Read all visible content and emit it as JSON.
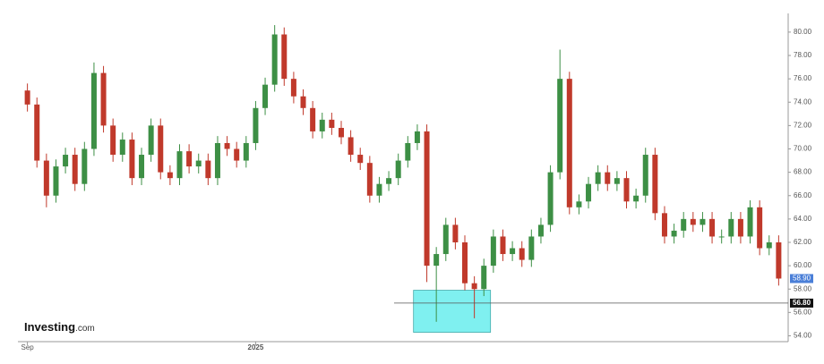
{
  "chart_data": {
    "type": "candlestick",
    "up_color": "#3d8f45",
    "down_color": "#c0392b",
    "open": [
      75,
      73.8,
      69,
      66,
      68.5,
      69.5,
      67,
      70,
      76.5,
      72,
      69.5,
      70.8,
      67.5,
      69.5,
      72,
      68,
      67.5,
      69.8,
      68.5,
      69,
      67.5,
      70.5,
      70,
      69,
      70.5,
      73.5,
      75.5,
      79.8,
      76,
      74.5,
      73.5,
      71.5,
      72.5,
      71.8,
      71,
      69.5,
      68.8,
      66,
      67,
      67.5,
      69,
      70.5,
      71.5,
      60,
      61,
      63.5,
      62,
      58.5,
      58,
      60,
      62.5,
      61,
      61.5,
      60.5,
      62.5,
      63.5,
      68,
      76,
      65,
      65.5,
      67,
      68,
      67,
      67.5,
      65.5,
      66,
      69.5,
      64.5,
      62.5,
      63,
      64,
      63.5,
      64,
      62.5,
      62.5,
      64,
      62.5,
      65,
      61.5,
      62
    ],
    "high": [
      75.6,
      74.4,
      69.6,
      69.1,
      70.1,
      70.1,
      70.6,
      77.4,
      77.1,
      72.6,
      71.4,
      71.4,
      70.1,
      72.6,
      72.6,
      68.6,
      70.4,
      70.4,
      69.6,
      69.6,
      71.1,
      71.1,
      70.6,
      71.1,
      74.1,
      76.1,
      80.6,
      80.4,
      76.6,
      75.1,
      74.1,
      73.1,
      73.1,
      72.4,
      71.6,
      70.1,
      69.4,
      67.6,
      68.1,
      69.6,
      71.1,
      72.1,
      72.1,
      61.6,
      64.1,
      64.1,
      62.6,
      59.1,
      60.6,
      63.1,
      63.1,
      62.1,
      62.1,
      63.1,
      64.1,
      68.6,
      78.5,
      76.6,
      66.1,
      67.6,
      68.6,
      68.6,
      68.1,
      68.1,
      66.6,
      70.1,
      70.1,
      65.1,
      63.6,
      64.6,
      64.6,
      64.6,
      64.6,
      63.1,
      64.6,
      64.6,
      65.6,
      65.6,
      62.6,
      62.6
    ],
    "low": [
      73.2,
      68.4,
      65.0,
      65.4,
      67.9,
      66.4,
      66.4,
      69.4,
      71.4,
      68.9,
      68.9,
      66.9,
      66.9,
      68.9,
      67.4,
      66.9,
      66.9,
      67.9,
      67.9,
      66.9,
      66.9,
      69.4,
      68.4,
      68.4,
      69.9,
      72.9,
      74.9,
      75.4,
      73.9,
      72.9,
      70.9,
      70.9,
      71.2,
      70.4,
      68.9,
      68.2,
      65.4,
      65.4,
      66.4,
      66.9,
      68.4,
      69.9,
      58.6,
      55.2,
      60.4,
      61.4,
      57.9,
      55.5,
      57.4,
      59.4,
      60.4,
      60.4,
      59.9,
      59.9,
      61.9,
      62.9,
      67.4,
      64.4,
      64.4,
      64.9,
      66.4,
      66.4,
      66.4,
      64.9,
      64.9,
      65.4,
      63.9,
      61.9,
      61.9,
      62.4,
      62.9,
      62.9,
      61.9,
      61.9,
      61.9,
      61.9,
      61.9,
      60.9,
      60.9,
      58.3
    ],
    "close": [
      73.8,
      69,
      66,
      68.5,
      69.5,
      67,
      70,
      76.5,
      72,
      69.5,
      70.8,
      67.5,
      69.5,
      72,
      68,
      67.5,
      69.8,
      68.5,
      69,
      67.5,
      70.5,
      70,
      69,
      70.5,
      73.5,
      75.5,
      79.8,
      76,
      74.5,
      73.5,
      71.5,
      72.5,
      71.8,
      71,
      69.5,
      68.8,
      66,
      67,
      67.5,
      69,
      70.5,
      71.5,
      60,
      61,
      63.5,
      62,
      58.5,
      58,
      60,
      62.5,
      61,
      61.5,
      60.5,
      62.5,
      63.5,
      68,
      76,
      65,
      65.5,
      67,
      68,
      67,
      67.5,
      65.5,
      66,
      69.5,
      64.5,
      62.5,
      63,
      64,
      63.5,
      64,
      62.5,
      62.5,
      64,
      62.5,
      65,
      61.5,
      62,
      58.9
    ],
    "xlim": [
      -1,
      80
    ],
    "xticks": [
      {
        "value": 0,
        "label": "Sep"
      },
      {
        "value": 24,
        "label": "2025"
      }
    ],
    "ylim": [
      53.5,
      81.6
    ],
    "yticks": [
      {
        "value": 54,
        "label": "54.00"
      },
      {
        "value": 56,
        "label": "56.00"
      },
      {
        "value": 58,
        "label": "58.00"
      },
      {
        "value": 60,
        "label": "60.00"
      },
      {
        "value": 62,
        "label": "62.00"
      },
      {
        "value": 64,
        "label": "64.00"
      },
      {
        "value": 66,
        "label": "66.00"
      },
      {
        "value": 68,
        "label": "68.00"
      },
      {
        "value": 70,
        "label": "70.00"
      },
      {
        "value": 72,
        "label": "72.00"
      },
      {
        "value": 74,
        "label": "74.00"
      },
      {
        "value": 76,
        "label": "76.00"
      },
      {
        "value": 78,
        "label": "78.00"
      },
      {
        "value": 80,
        "label": "80.00"
      }
    ],
    "last_price": {
      "value": 58.9,
      "label": "58.90"
    },
    "price_line": {
      "value": 56.8,
      "label": "56.80"
    },
    "highlight": {
      "x": [
        40.6,
        48.7
      ],
      "y": [
        54.3,
        57.9
      ]
    },
    "brand": "Investing",
    "brand_suffix": ".com"
  }
}
